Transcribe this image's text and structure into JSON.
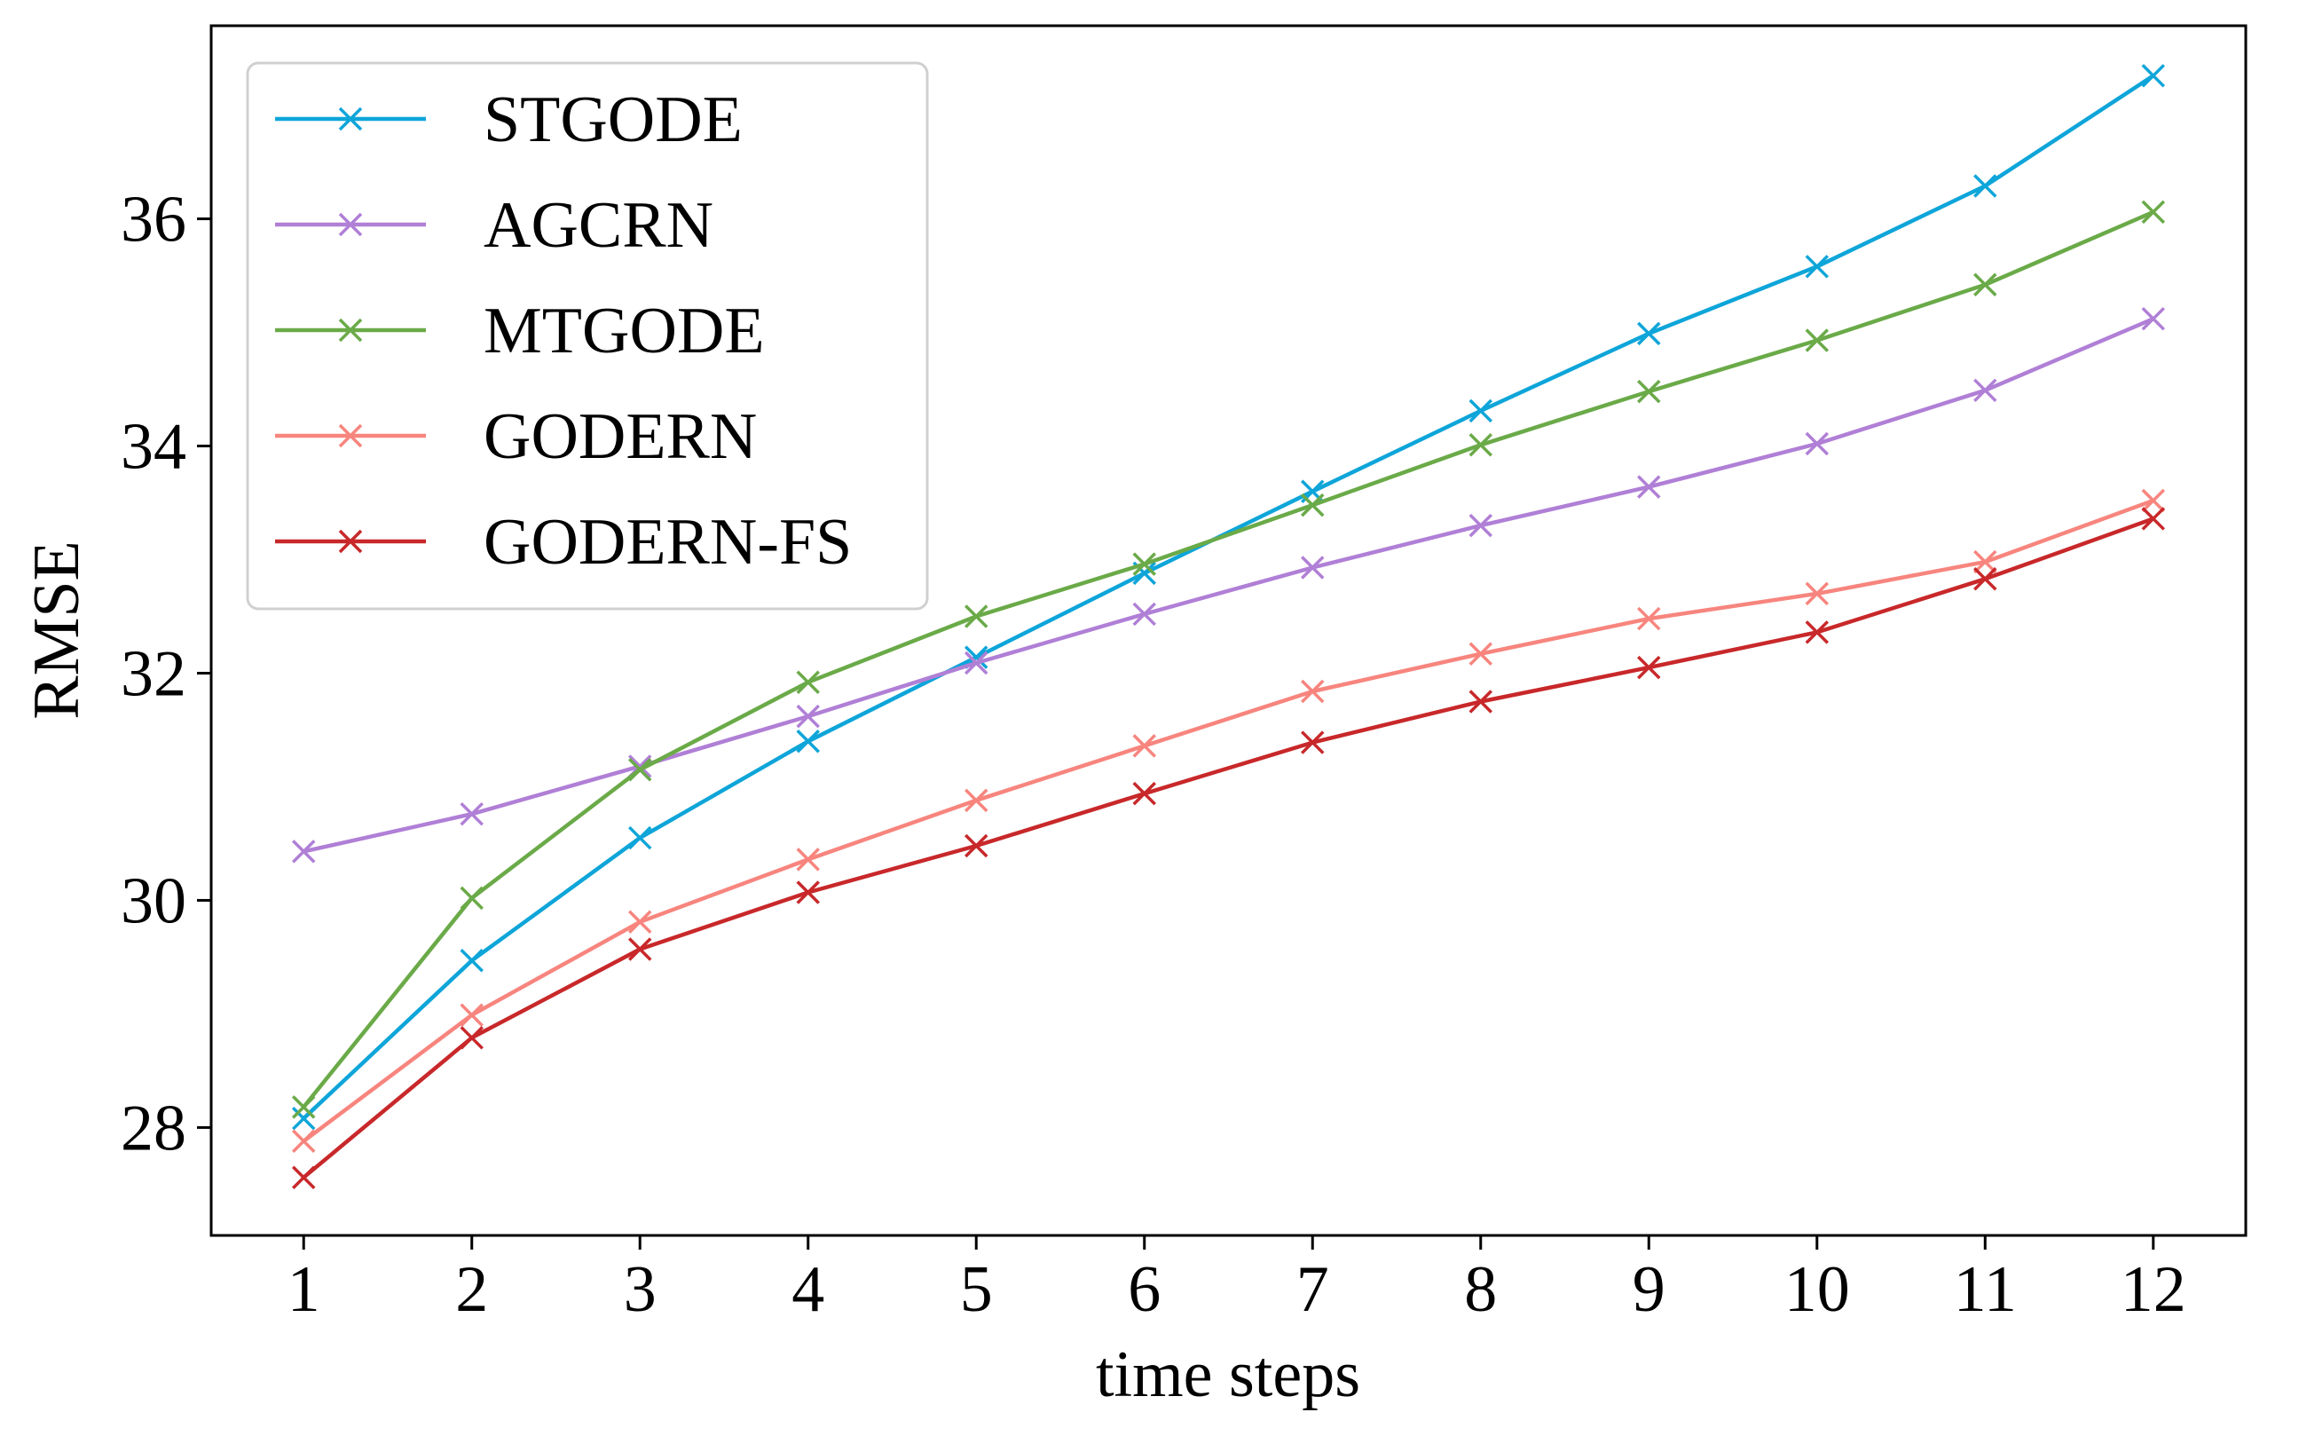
{
  "chart_data": {
    "type": "line",
    "title": "",
    "xlabel": "time steps",
    "ylabel": "RMSE",
    "x": [
      1,
      2,
      3,
      4,
      5,
      6,
      7,
      8,
      9,
      10,
      11,
      12
    ],
    "xticks": [
      "1",
      "2",
      "3",
      "4",
      "5",
      "6",
      "7",
      "8",
      "9",
      "10",
      "11",
      "12"
    ],
    "yticks": [
      28,
      30,
      32,
      34,
      36
    ],
    "ylim": [
      27.05,
      37.7
    ],
    "xlim": [
      0.45,
      12.55
    ],
    "grid": false,
    "legend": "top-left",
    "marker": "x",
    "series": [
      {
        "name": "STGODE",
        "color": "#0ea5d9",
        "values": [
          28.08,
          29.47,
          30.55,
          31.4,
          32.14,
          32.88,
          33.6,
          34.31,
          34.99,
          35.58,
          36.29,
          37.26
        ]
      },
      {
        "name": "AGCRN",
        "color": "#b07fd6",
        "values": [
          30.43,
          30.76,
          31.18,
          31.62,
          32.09,
          32.52,
          32.93,
          33.3,
          33.64,
          34.02,
          34.49,
          35.12
        ]
      },
      {
        "name": "MTGODE",
        "color": "#6aaa48",
        "values": [
          28.18,
          30.02,
          31.15,
          31.92,
          32.5,
          32.96,
          33.48,
          34.01,
          34.48,
          34.93,
          35.42,
          36.06
        ]
      },
      {
        "name": "GODERN",
        "color": "#f7857e",
        "values": [
          27.88,
          28.99,
          29.81,
          30.36,
          30.88,
          31.36,
          31.84,
          32.17,
          32.48,
          32.7,
          32.98,
          33.52
        ]
      },
      {
        "name": "GODERN-FS",
        "color": "#c8282a",
        "values": [
          27.56,
          28.79,
          29.57,
          30.07,
          30.48,
          30.94,
          31.39,
          31.75,
          32.05,
          32.36,
          32.83,
          33.36
        ]
      }
    ]
  }
}
